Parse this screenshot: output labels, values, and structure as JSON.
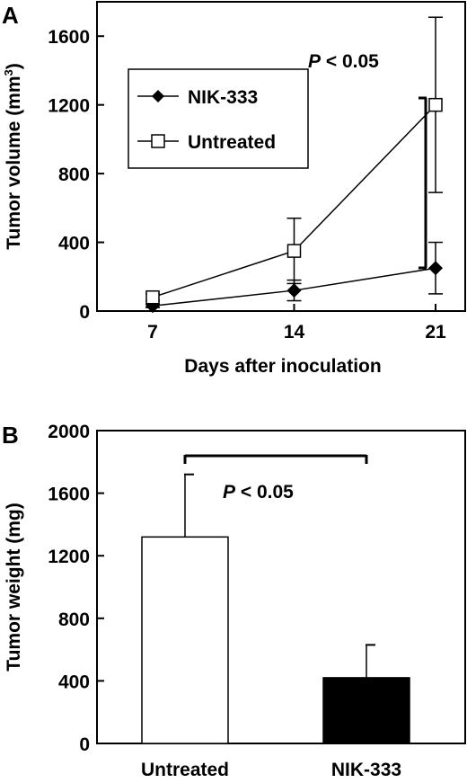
{
  "chart_data": [
    {
      "panel": "A",
      "type": "line",
      "x": [
        7,
        14,
        21
      ],
      "xlabel": "Days after inoculation",
      "ylabel": "Tumor volume (mm",
      "ylabel_sup": "3",
      "ylabel_close": ")",
      "ylim": [
        0,
        1800
      ],
      "yticks": [
        0,
        400,
        800,
        1200,
        1600
      ],
      "grid": false,
      "legend": "upper-left",
      "series": [
        {
          "name": "NIK-333",
          "marker": "filled-diamond",
          "values": [
            30,
            120,
            250
          ],
          "error": [
            10,
            60,
            150
          ]
        },
        {
          "name": "Untreated",
          "marker": "open-square",
          "values": [
            80,
            350,
            1200
          ],
          "error": [
            20,
            190,
            510
          ]
        }
      ],
      "annotation": {
        "p": "P",
        "rest": " < 0.05"
      }
    },
    {
      "panel": "B",
      "type": "bar",
      "categories": [
        "Untreated",
        "NIK-333"
      ],
      "values": [
        1320,
        420
      ],
      "error": [
        400,
        210
      ],
      "fills": [
        "#ffffff",
        "#000000"
      ],
      "xlabel": "",
      "ylabel": "Tumor weight (mg)",
      "ylim": [
        0,
        2000
      ],
      "yticks": [
        0,
        400,
        800,
        1200,
        1600,
        2000
      ],
      "grid": false,
      "annotation": {
        "p": "P",
        "rest": " < 0.05"
      }
    }
  ]
}
